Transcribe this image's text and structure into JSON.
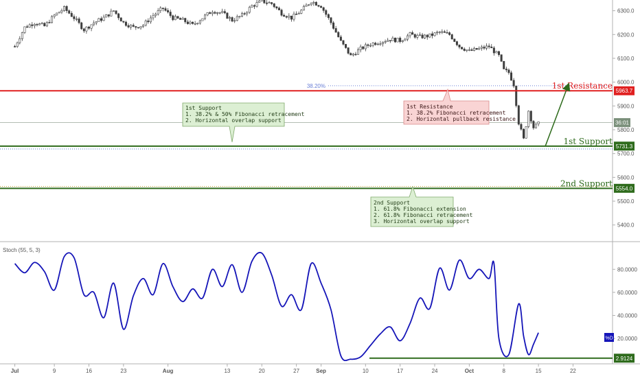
{
  "chart_data": [
    {
      "type": "candlestick",
      "y_ticks": [
        "6300.0",
        "6200.0",
        "6100.0",
        "6000.0",
        "5900.0",
        "5800.0",
        "5700.0",
        "5600.0",
        "5500.0",
        "5400.0"
      ],
      "y_tick_values": [
        6300,
        6200,
        6100,
        6000,
        5900,
        5800,
        5700,
        5600,
        5500,
        5400
      ],
      "ylim": [
        5330,
        6345
      ],
      "x_ticks": [
        "Jul",
        "9",
        "16",
        "23",
        "Aug",
        "13",
        "20",
        "27",
        "Sep",
        "10",
        "17",
        "24",
        "Oct",
        "8",
        "15",
        "22"
      ],
      "x_tick_days": [
        0,
        8,
        15,
        22,
        31,
        43,
        50,
        57,
        62,
        71,
        78,
        85,
        92,
        99,
        106,
        113
      ],
      "x_tick_bold": [
        true,
        false,
        false,
        false,
        true,
        false,
        false,
        false,
        true,
        false,
        false,
        false,
        true,
        false,
        false,
        false
      ],
      "price_series": {
        "x": [
          0,
          2,
          4,
          6,
          8,
          10,
          12,
          14,
          16,
          18,
          20,
          22,
          24,
          26,
          28,
          30,
          32,
          34,
          36,
          38,
          40,
          42,
          44,
          46,
          48,
          50,
          52,
          54,
          56,
          58,
          60,
          62,
          64,
          66,
          68,
          70,
          72,
          74,
          76,
          78,
          80,
          82,
          84,
          86,
          88,
          90,
          92,
          94,
          96,
          98,
          99,
          100,
          101,
          102,
          103,
          104,
          105,
          106
        ],
        "y": [
          6150,
          6230,
          6250,
          6235,
          6280,
          6310,
          6270,
          6220,
          6250,
          6270,
          6300,
          6250,
          6230,
          6240,
          6280,
          6310,
          6270,
          6260,
          6240,
          6270,
          6300,
          6290,
          6260,
          6280,
          6320,
          6340,
          6330,
          6290,
          6270,
          6300,
          6340,
          6320,
          6250,
          6170,
          6110,
          6140,
          6160,
          6170,
          6180,
          6175,
          6200,
          6190,
          6195,
          6210,
          6200,
          6150,
          6130,
          6140,
          6150,
          6110,
          6050,
          6040,
          5990,
          5830,
          5760,
          5880,
          5810,
          5825
        ]
      },
      "levels": [
        {
          "name": "1st Resistance",
          "value": 5963.7,
          "label": "5963.7",
          "color": "#e02020"
        },
        {
          "name": "1st Support",
          "value": 5731.3,
          "label": "5731.3",
          "color": "#2e6b1c"
        },
        {
          "name": "2nd Support",
          "value": 5554.0,
          "label": "5554.0",
          "color": "#2e6b1c"
        }
      ],
      "fib_level": {
        "label": "38.20%",
        "value": 5985
      },
      "current_label": "36:01",
      "current_value": 5830,
      "arrow": {
        "from": [
          106,
          5731
        ],
        "to": [
          112,
          5963
        ]
      }
    },
    {
      "type": "line",
      "indicator_label": "Stoch (55, 5, 3)",
      "y_ticks": [
        "80.0000",
        "60.0000",
        "40.0000",
        "20.0000"
      ],
      "y_tick_values": [
        80,
        60,
        40,
        20
      ],
      "ylim": [
        -2,
        104
      ],
      "badge": "%D",
      "line_value": 2.9124,
      "line_label": "2.9124",
      "series": [
        {
          "x": [
            0,
            2,
            4,
            6,
            8,
            10,
            12,
            14,
            16,
            18,
            20,
            22,
            24,
            26,
            28,
            30,
            32,
            34,
            36,
            38,
            40,
            42,
            44,
            46,
            48,
            50,
            52,
            54,
            56,
            58,
            60,
            62,
            64,
            66,
            68,
            70,
            72,
            74,
            76,
            78,
            80,
            82,
            84,
            86,
            88,
            90,
            92,
            94,
            96,
            97,
            98,
            100,
            102,
            103,
            104,
            105,
            106
          ],
          "y": [
            85,
            77,
            86,
            78,
            62,
            91,
            90,
            58,
            60,
            38,
            68,
            28,
            57,
            72,
            58,
            85,
            65,
            52,
            63,
            55,
            80,
            65,
            84,
            60,
            87,
            94,
            75,
            48,
            58,
            45,
            85,
            68,
            45,
            5,
            2,
            4,
            14,
            24,
            30,
            18,
            33,
            55,
            46,
            81,
            62,
            88,
            72,
            80,
            72,
            85,
            20,
            6,
            50,
            22,
            6,
            15,
            25
          ]
        }
      ]
    }
  ],
  "annotations": {
    "support1": {
      "title": "1st Support",
      "line1": "1. 38.2% & 50% Fibonacci retracement",
      "line2": "2. Horizontal overlap support"
    },
    "resistance1": {
      "title": "1st Resistance",
      "line1": "1. 38.2% Fibonacci retracement",
      "line2": "2. Horizontal pullback resistance"
    },
    "support2": {
      "title": "2nd Support",
      "line1": "1. 61.8% Fibonacci extension",
      "line2": "2. 61.8% Fibonacci retracement",
      "line3": "3. Horizontal overlap support"
    },
    "level_text": {
      "resistance1": "1st Resistance",
      "support1": "1st Support",
      "support2": "2nd Support"
    }
  },
  "colors": {
    "candle_up": "#3d3d3d",
    "candle_down": "#3d3d3d",
    "stoch_line": "#1515b8",
    "resistance": "#e02020",
    "support": "#2e6b1c",
    "support_box_bg": "#dcefd3",
    "support_box_border": "#7fa86a",
    "resistance_box_bg": "#f9d4d4",
    "resistance_box_border": "#d98a8a"
  }
}
